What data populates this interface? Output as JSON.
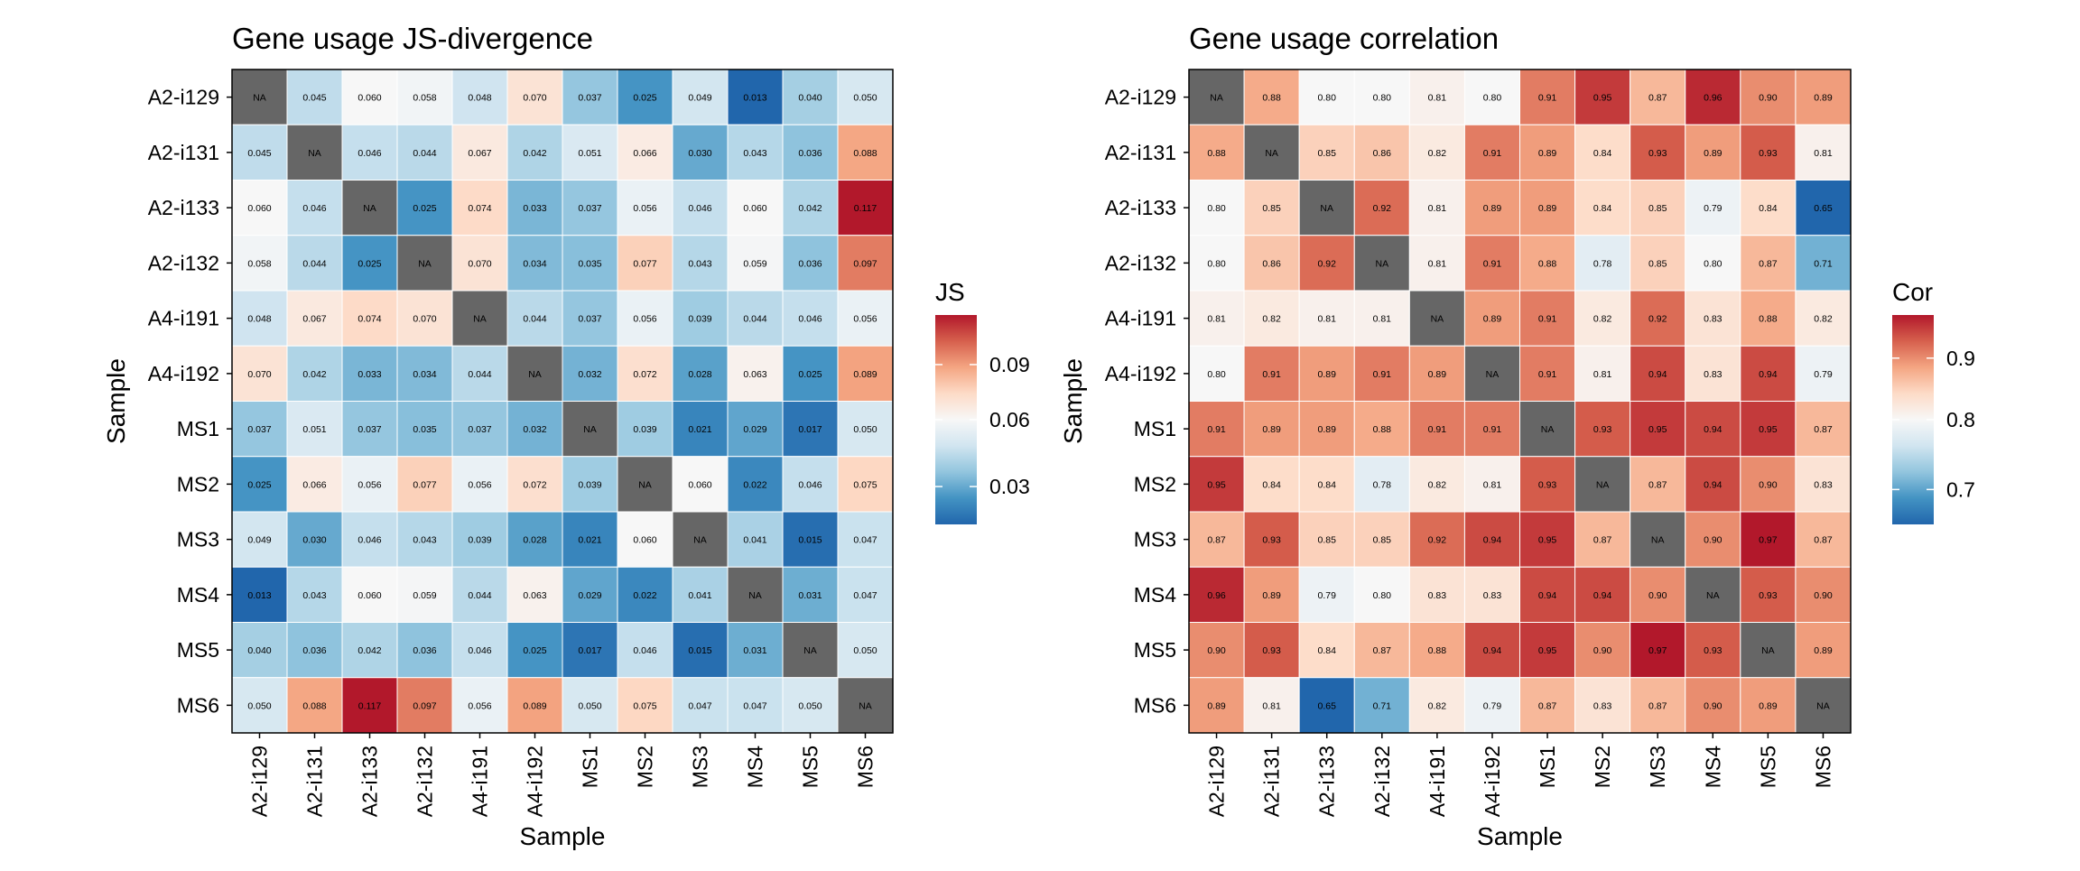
{
  "chart_data": [
    {
      "type": "heatmap",
      "title": "Gene usage JS-divergence",
      "xlabel": "Sample",
      "ylabel": "Sample",
      "rows": [
        "A2-i129",
        "A2-i131",
        "A2-i133",
        "A2-i132",
        "A4-i191",
        "A4-i192",
        "MS1",
        "MS2",
        "MS3",
        "MS4",
        "MS5",
        "MS6"
      ],
      "columns": [
        "A2-i129",
        "A2-i131",
        "A2-i133",
        "A2-i132",
        "A4-i191",
        "A4-i192",
        "MS1",
        "MS2",
        "MS3",
        "MS4",
        "MS5",
        "MS6"
      ],
      "cells": [
        [
          "NA",
          "0.045",
          "0.060",
          "0.058",
          "0.048",
          "0.070",
          "0.037",
          "0.025",
          "0.049",
          "0.013",
          "0.040",
          "0.050"
        ],
        [
          "0.045",
          "NA",
          "0.046",
          "0.044",
          "0.067",
          "0.042",
          "0.051",
          "0.066",
          "0.030",
          "0.043",
          "0.036",
          "0.088"
        ],
        [
          "0.060",
          "0.046",
          "NA",
          "0.025",
          "0.074",
          "0.033",
          "0.037",
          "0.056",
          "0.046",
          "0.060",
          "0.042",
          "0.117"
        ],
        [
          "0.058",
          "0.044",
          "0.025",
          "NA",
          "0.070",
          "0.034",
          "0.035",
          "0.077",
          "0.043",
          "0.059",
          "0.036",
          "0.097"
        ],
        [
          "0.048",
          "0.067",
          "0.074",
          "0.070",
          "NA",
          "0.044",
          "0.037",
          "0.056",
          "0.039",
          "0.044",
          "0.046",
          "0.056"
        ],
        [
          "0.070",
          "0.042",
          "0.033",
          "0.034",
          "0.044",
          "NA",
          "0.032",
          "0.072",
          "0.028",
          "0.063",
          "0.025",
          "0.089"
        ],
        [
          "0.037",
          "0.051",
          "0.037",
          "0.035",
          "0.037",
          "0.032",
          "NA",
          "0.039",
          "0.021",
          "0.029",
          "0.017",
          "0.050"
        ],
        [
          "0.025",
          "0.066",
          "0.056",
          "0.077",
          "0.056",
          "0.072",
          "0.039",
          "NA",
          "0.060",
          "0.022",
          "0.046",
          "0.075"
        ],
        [
          "0.049",
          "0.030",
          "0.046",
          "0.043",
          "0.039",
          "0.028",
          "0.021",
          "0.060",
          "NA",
          "0.041",
          "0.015",
          "0.047"
        ],
        [
          "0.013",
          "0.043",
          "0.060",
          "0.059",
          "0.044",
          "0.063",
          "0.029",
          "0.022",
          "0.041",
          "NA",
          "0.031",
          "0.047"
        ],
        [
          "0.040",
          "0.036",
          "0.042",
          "0.036",
          "0.046",
          "0.025",
          "0.017",
          "0.046",
          "0.015",
          "0.031",
          "NA",
          "0.050"
        ],
        [
          "0.050",
          "0.088",
          "0.117",
          "0.097",
          "0.056",
          "0.089",
          "0.050",
          "0.075",
          "0.047",
          "0.047",
          "0.050",
          "NA"
        ]
      ],
      "color_scale": {
        "min": 0.013,
        "mid": 0.06,
        "max": 0.117,
        "low_color": "#2166ac",
        "mid_color": "#f7f7f7",
        "high_color": "#b2182b",
        "na_color": "#666666"
      },
      "legend": {
        "title": "JS",
        "ticks": [
          "0.09",
          "0.06",
          "0.03"
        ],
        "tick_values": [
          0.09,
          0.06,
          0.03
        ],
        "placement": "right"
      }
    },
    {
      "type": "heatmap",
      "title": "Gene usage correlation",
      "xlabel": "Sample",
      "ylabel": "Sample",
      "rows": [
        "A2-i129",
        "A2-i131",
        "A2-i133",
        "A2-i132",
        "A4-i191",
        "A4-i192",
        "MS1",
        "MS2",
        "MS3",
        "MS4",
        "MS5",
        "MS6"
      ],
      "columns": [
        "A2-i129",
        "A2-i131",
        "A2-i133",
        "A2-i132",
        "A4-i191",
        "A4-i192",
        "MS1",
        "MS2",
        "MS3",
        "MS4",
        "MS5",
        "MS6"
      ],
      "cells": [
        [
          "NA",
          "0.88",
          "0.80",
          "0.80",
          "0.81",
          "0.80",
          "0.91",
          "0.95",
          "0.87",
          "0.96",
          "0.90",
          "0.89"
        ],
        [
          "0.88",
          "NA",
          "0.85",
          "0.86",
          "0.82",
          "0.91",
          "0.89",
          "0.84",
          "0.93",
          "0.89",
          "0.93",
          "0.81"
        ],
        [
          "0.80",
          "0.85",
          "NA",
          "0.92",
          "0.81",
          "0.89",
          "0.89",
          "0.84",
          "0.85",
          "0.79",
          "0.84",
          "0.65"
        ],
        [
          "0.80",
          "0.86",
          "0.92",
          "NA",
          "0.81",
          "0.91",
          "0.88",
          "0.78",
          "0.85",
          "0.80",
          "0.87",
          "0.71"
        ],
        [
          "0.81",
          "0.82",
          "0.81",
          "0.81",
          "NA",
          "0.89",
          "0.91",
          "0.82",
          "0.92",
          "0.83",
          "0.88",
          "0.82"
        ],
        [
          "0.80",
          "0.91",
          "0.89",
          "0.91",
          "0.89",
          "NA",
          "0.91",
          "0.81",
          "0.94",
          "0.83",
          "0.94",
          "0.79"
        ],
        [
          "0.91",
          "0.89",
          "0.89",
          "0.88",
          "0.91",
          "0.91",
          "NA",
          "0.93",
          "0.95",
          "0.94",
          "0.95",
          "0.87"
        ],
        [
          "0.95",
          "0.84",
          "0.84",
          "0.78",
          "0.82",
          "0.81",
          "0.93",
          "NA",
          "0.87",
          "0.94",
          "0.90",
          "0.83"
        ],
        [
          "0.87",
          "0.93",
          "0.85",
          "0.85",
          "0.92",
          "0.94",
          "0.95",
          "0.87",
          "NA",
          "0.90",
          "0.97",
          "0.87"
        ],
        [
          "0.96",
          "0.89",
          "0.79",
          "0.80",
          "0.83",
          "0.83",
          "0.94",
          "0.94",
          "0.90",
          "NA",
          "0.93",
          "0.90"
        ],
        [
          "0.90",
          "0.93",
          "0.84",
          "0.87",
          "0.88",
          "0.94",
          "0.95",
          "0.90",
          "0.97",
          "0.93",
          "NA",
          "0.89"
        ],
        [
          "0.89",
          "0.81",
          "0.65",
          "0.71",
          "0.82",
          "0.79",
          "0.87",
          "0.83",
          "0.87",
          "0.90",
          "0.89",
          "NA"
        ]
      ],
      "color_scale": {
        "min": 0.65,
        "mid": 0.8,
        "max": 0.97,
        "low_color": "#2166ac",
        "mid_color": "#f7f7f7",
        "high_color": "#b2182b",
        "na_color": "#666666"
      },
      "legend": {
        "title": "Cor",
        "ticks": [
          "0.9",
          "0.8",
          "0.7"
        ],
        "tick_values": [
          0.9,
          0.8,
          0.7
        ],
        "placement": "right"
      }
    }
  ]
}
